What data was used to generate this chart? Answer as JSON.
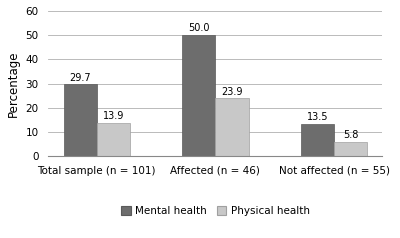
{
  "categories": [
    "Total sample (n = 101)",
    "Affected (n = 46)",
    "Not affected (n = 55)"
  ],
  "mental_health": [
    29.7,
    50.0,
    13.5
  ],
  "physical_health": [
    13.9,
    23.9,
    5.8
  ],
  "mental_color": "#6d6d6d",
  "physical_color": "#c8c8c8",
  "mental_edge": "#5a5a5a",
  "physical_edge": "#a0a0a0",
  "ylabel": "Percentage",
  "ylim": [
    0,
    60
  ],
  "yticks": [
    0,
    10,
    20,
    30,
    40,
    50,
    60
  ],
  "legend_labels": [
    "Mental health",
    "Physical health"
  ],
  "bar_width": 0.28,
  "label_fontsize": 7.0,
  "tick_fontsize": 7.5,
  "ylabel_fontsize": 8.5,
  "legend_fontsize": 7.5,
  "value_fontsize": 7.0,
  "background_color": "#ffffff"
}
